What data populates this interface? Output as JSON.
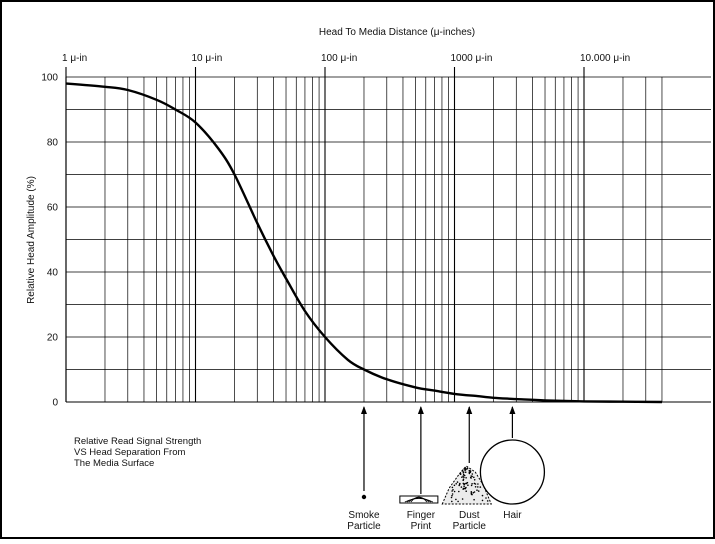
{
  "chart_data": {
    "type": "line",
    "title": "",
    "xlabel": "Head To Media Distance (μ-inches)",
    "ylabel": "Relative Head Amplitude (%)",
    "x_scale": "log",
    "xlim": [
      1,
      40000
    ],
    "ylim": [
      0,
      100
    ],
    "grid": true,
    "x_tick_labels": [
      "1 μ-in",
      "10 μ-in",
      "100 μ-in",
      "1000 μ-in",
      "10.000 μ-in"
    ],
    "x_tick_values": [
      1,
      10,
      100,
      1000,
      10000
    ],
    "y_ticks": [
      0,
      20,
      40,
      60,
      80,
      100
    ],
    "series": [
      {
        "x": [
          1,
          2,
          3,
          5,
          7,
          10,
          15,
          20,
          30,
          40,
          50,
          70,
          100,
          150,
          200,
          300,
          500,
          700,
          1000,
          1500,
          2000,
          3000,
          5000,
          10000,
          20000,
          40000
        ],
        "y": [
          98,
          97,
          96,
          93,
          90,
          86,
          78,
          70,
          55,
          45,
          38,
          28,
          20,
          13,
          10,
          7,
          4.5,
          3.5,
          2.5,
          1.8,
          1.3,
          0.9,
          0.5,
          0.2,
          0.1,
          0
        ]
      }
    ],
    "annotations": [
      {
        "label_lines": [
          "Smoke",
          "Particle"
        ],
        "x": 200,
        "icon": "dot-icon"
      },
      {
        "label_lines": [
          "Finger",
          "Print"
        ],
        "x": 550,
        "icon": "fingerprint-icon"
      },
      {
        "label_lines": [
          "Dust",
          "Particle"
        ],
        "x": 1300,
        "icon": "dust-pile-icon"
      },
      {
        "label_lines": [
          "Hair"
        ],
        "x": 2800,
        "icon": "hair-cross-section-icon"
      }
    ],
    "caption_lines": [
      "Relative Read Signal Strength",
      "VS Head Separation From",
      "The Media Surface"
    ]
  }
}
